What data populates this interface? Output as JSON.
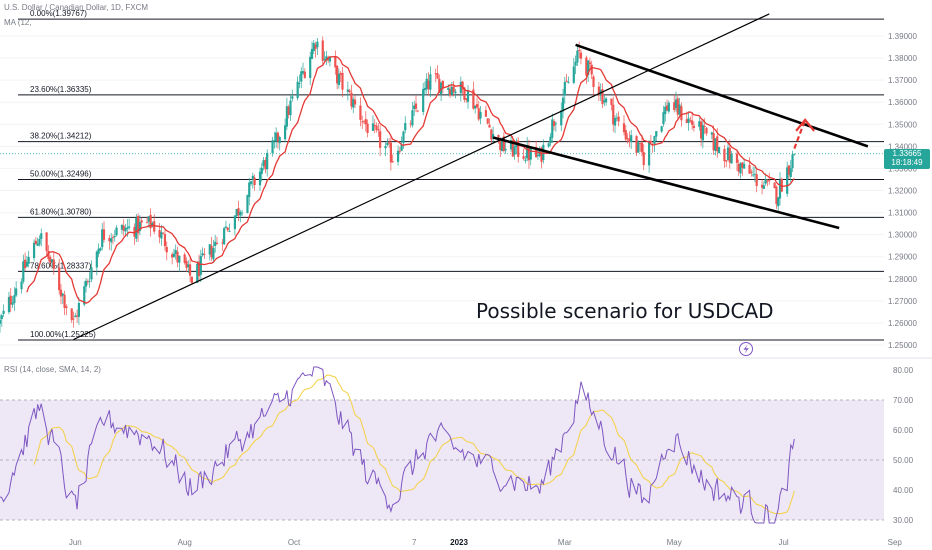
{
  "header": {
    "symbol_line": "U.S. Dollar / Canadian Dollar, 1D, FXCM",
    "ma_line": "MA (12,"
  },
  "annotation": {
    "scenario": "Possible scenario for USDCAD"
  },
  "price_badge": {
    "price": "1.33665",
    "countdown": "18:18:49",
    "color": "#26a69a"
  },
  "colors": {
    "up_candle": "#26a69a",
    "down_candle": "#ef5350",
    "ma_line": "#e53935",
    "rsi_line": "#7e57c2",
    "rsi_ma_line": "#f5d142",
    "rsi_band": "#ede7f6",
    "arrow": "#e53935",
    "fib_line": "#131722"
  },
  "chart_data": [
    {
      "type": "candlestick",
      "title": "U.S. Dollar / Canadian Dollar, 1D, FXCM",
      "y_axis_ticks": [
        "1.39000",
        "1.38000",
        "1.37000",
        "1.36000",
        "1.35000",
        "1.34000",
        "1.33000",
        "1.32000",
        "1.31000",
        "1.30000",
        "1.29000",
        "1.28000",
        "1.27000",
        "1.26000",
        "1.25000"
      ],
      "ylim": [
        1.245,
        1.4
      ],
      "x_axis_ticks": [
        "Jun",
        "Aug",
        "Oct",
        "7",
        "2023",
        "Mar",
        "May",
        "Jul",
        "Sep"
      ],
      "fib_levels": [
        {
          "label": "0.00%(1.39767)",
          "value": 1.39767
        },
        {
          "label": "23.60%(1.36335)",
          "value": 1.36335
        },
        {
          "label": "38.20%(1.34212)",
          "value": 1.34212
        },
        {
          "label": "50.00%(1.32496)",
          "value": 1.32496
        },
        {
          "label": "61.80%(1.30780)",
          "value": 1.3078
        },
        {
          "label": "78.60%(1.28337)",
          "value": 1.28337
        },
        {
          "label": "100.00%(1.25225)",
          "value": 1.25225
        }
      ],
      "approx_close_path": [
        {
          "x": "2022-04-20",
          "y": 1.26
        },
        {
          "x": "2022-05-12",
          "y": 1.3
        },
        {
          "x": "2022-05-31",
          "y": 1.26
        },
        {
          "x": "2022-06-16",
          "y": 1.3
        },
        {
          "x": "2022-07-14",
          "y": 1.305
        },
        {
          "x": "2022-08-05",
          "y": 1.28
        },
        {
          "x": "2022-08-30",
          "y": 1.31
        },
        {
          "x": "2022-09-20",
          "y": 1.34
        },
        {
          "x": "2022-10-13",
          "y": 1.388
        },
        {
          "x": "2022-11-10",
          "y": 1.35
        },
        {
          "x": "2022-11-25",
          "y": 1.335
        },
        {
          "x": "2022-12-16",
          "y": 1.37
        },
        {
          "x": "2023-01-05",
          "y": 1.365
        },
        {
          "x": "2023-01-25",
          "y": 1.34
        },
        {
          "x": "2023-02-15",
          "y": 1.335
        },
        {
          "x": "2023-03-09",
          "y": 1.382
        },
        {
          "x": "2023-03-31",
          "y": 1.35
        },
        {
          "x": "2023-04-14",
          "y": 1.335
        },
        {
          "x": "2023-04-28",
          "y": 1.36
        },
        {
          "x": "2023-05-18",
          "y": 1.345
        },
        {
          "x": "2023-06-08",
          "y": 1.33
        },
        {
          "x": "2023-06-27",
          "y": 1.318
        },
        {
          "x": "2023-07-07",
          "y": 1.33665
        }
      ],
      "trendlines": [
        {
          "name": "rising support",
          "from": {
            "x": "2022-05-31",
            "y": 1.2525
          },
          "to": {
            "x": "2023-06-23",
            "y": 1.4
          }
        },
        {
          "name": "channel top",
          "from": {
            "x": "2023-03-07",
            "y": 1.386
          },
          "to": {
            "x": "2023-08-17",
            "y": 1.34
          }
        },
        {
          "name": "channel bottom",
          "from": {
            "x": "2023-01-20",
            "y": 1.344
          },
          "to": {
            "x": "2023-08-01",
            "y": 1.303
          }
        }
      ],
      "arrow": {
        "from": {
          "x": "2023-07-07",
          "y": 1.339
        },
        "to": {
          "x": "2023-07-13",
          "y": 1.352
        }
      }
    },
    {
      "type": "line",
      "title": "RSI (14, close, SMA, 14, 2)",
      "y_axis_ticks": [
        "80.00",
        "70.00",
        "60.00",
        "50.00",
        "40.00",
        "30.00"
      ],
      "ylim": [
        28,
        82
      ],
      "band": [
        30,
        70
      ],
      "approx_rsi_path": [
        {
          "x": "2022-04-20",
          "y": 38
        },
        {
          "x": "2022-05-12",
          "y": 68
        },
        {
          "x": "2022-05-31",
          "y": 33
        },
        {
          "x": "2022-06-16",
          "y": 64
        },
        {
          "x": "2022-07-14",
          "y": 57
        },
        {
          "x": "2022-08-05",
          "y": 40
        },
        {
          "x": "2022-08-30",
          "y": 56
        },
        {
          "x": "2022-10-13",
          "y": 81
        },
        {
          "x": "2022-11-10",
          "y": 45
        },
        {
          "x": "2022-11-25",
          "y": 37
        },
        {
          "x": "2022-12-16",
          "y": 58
        },
        {
          "x": "2023-01-25",
          "y": 45
        },
        {
          "x": "2023-02-15",
          "y": 40
        },
        {
          "x": "2023-03-09",
          "y": 73
        },
        {
          "x": "2023-04-14",
          "y": 34
        },
        {
          "x": "2023-04-28",
          "y": 60
        },
        {
          "x": "2023-05-18",
          "y": 42
        },
        {
          "x": "2023-06-27",
          "y": 30
        },
        {
          "x": "2023-07-07",
          "y": 57
        }
      ]
    }
  ]
}
